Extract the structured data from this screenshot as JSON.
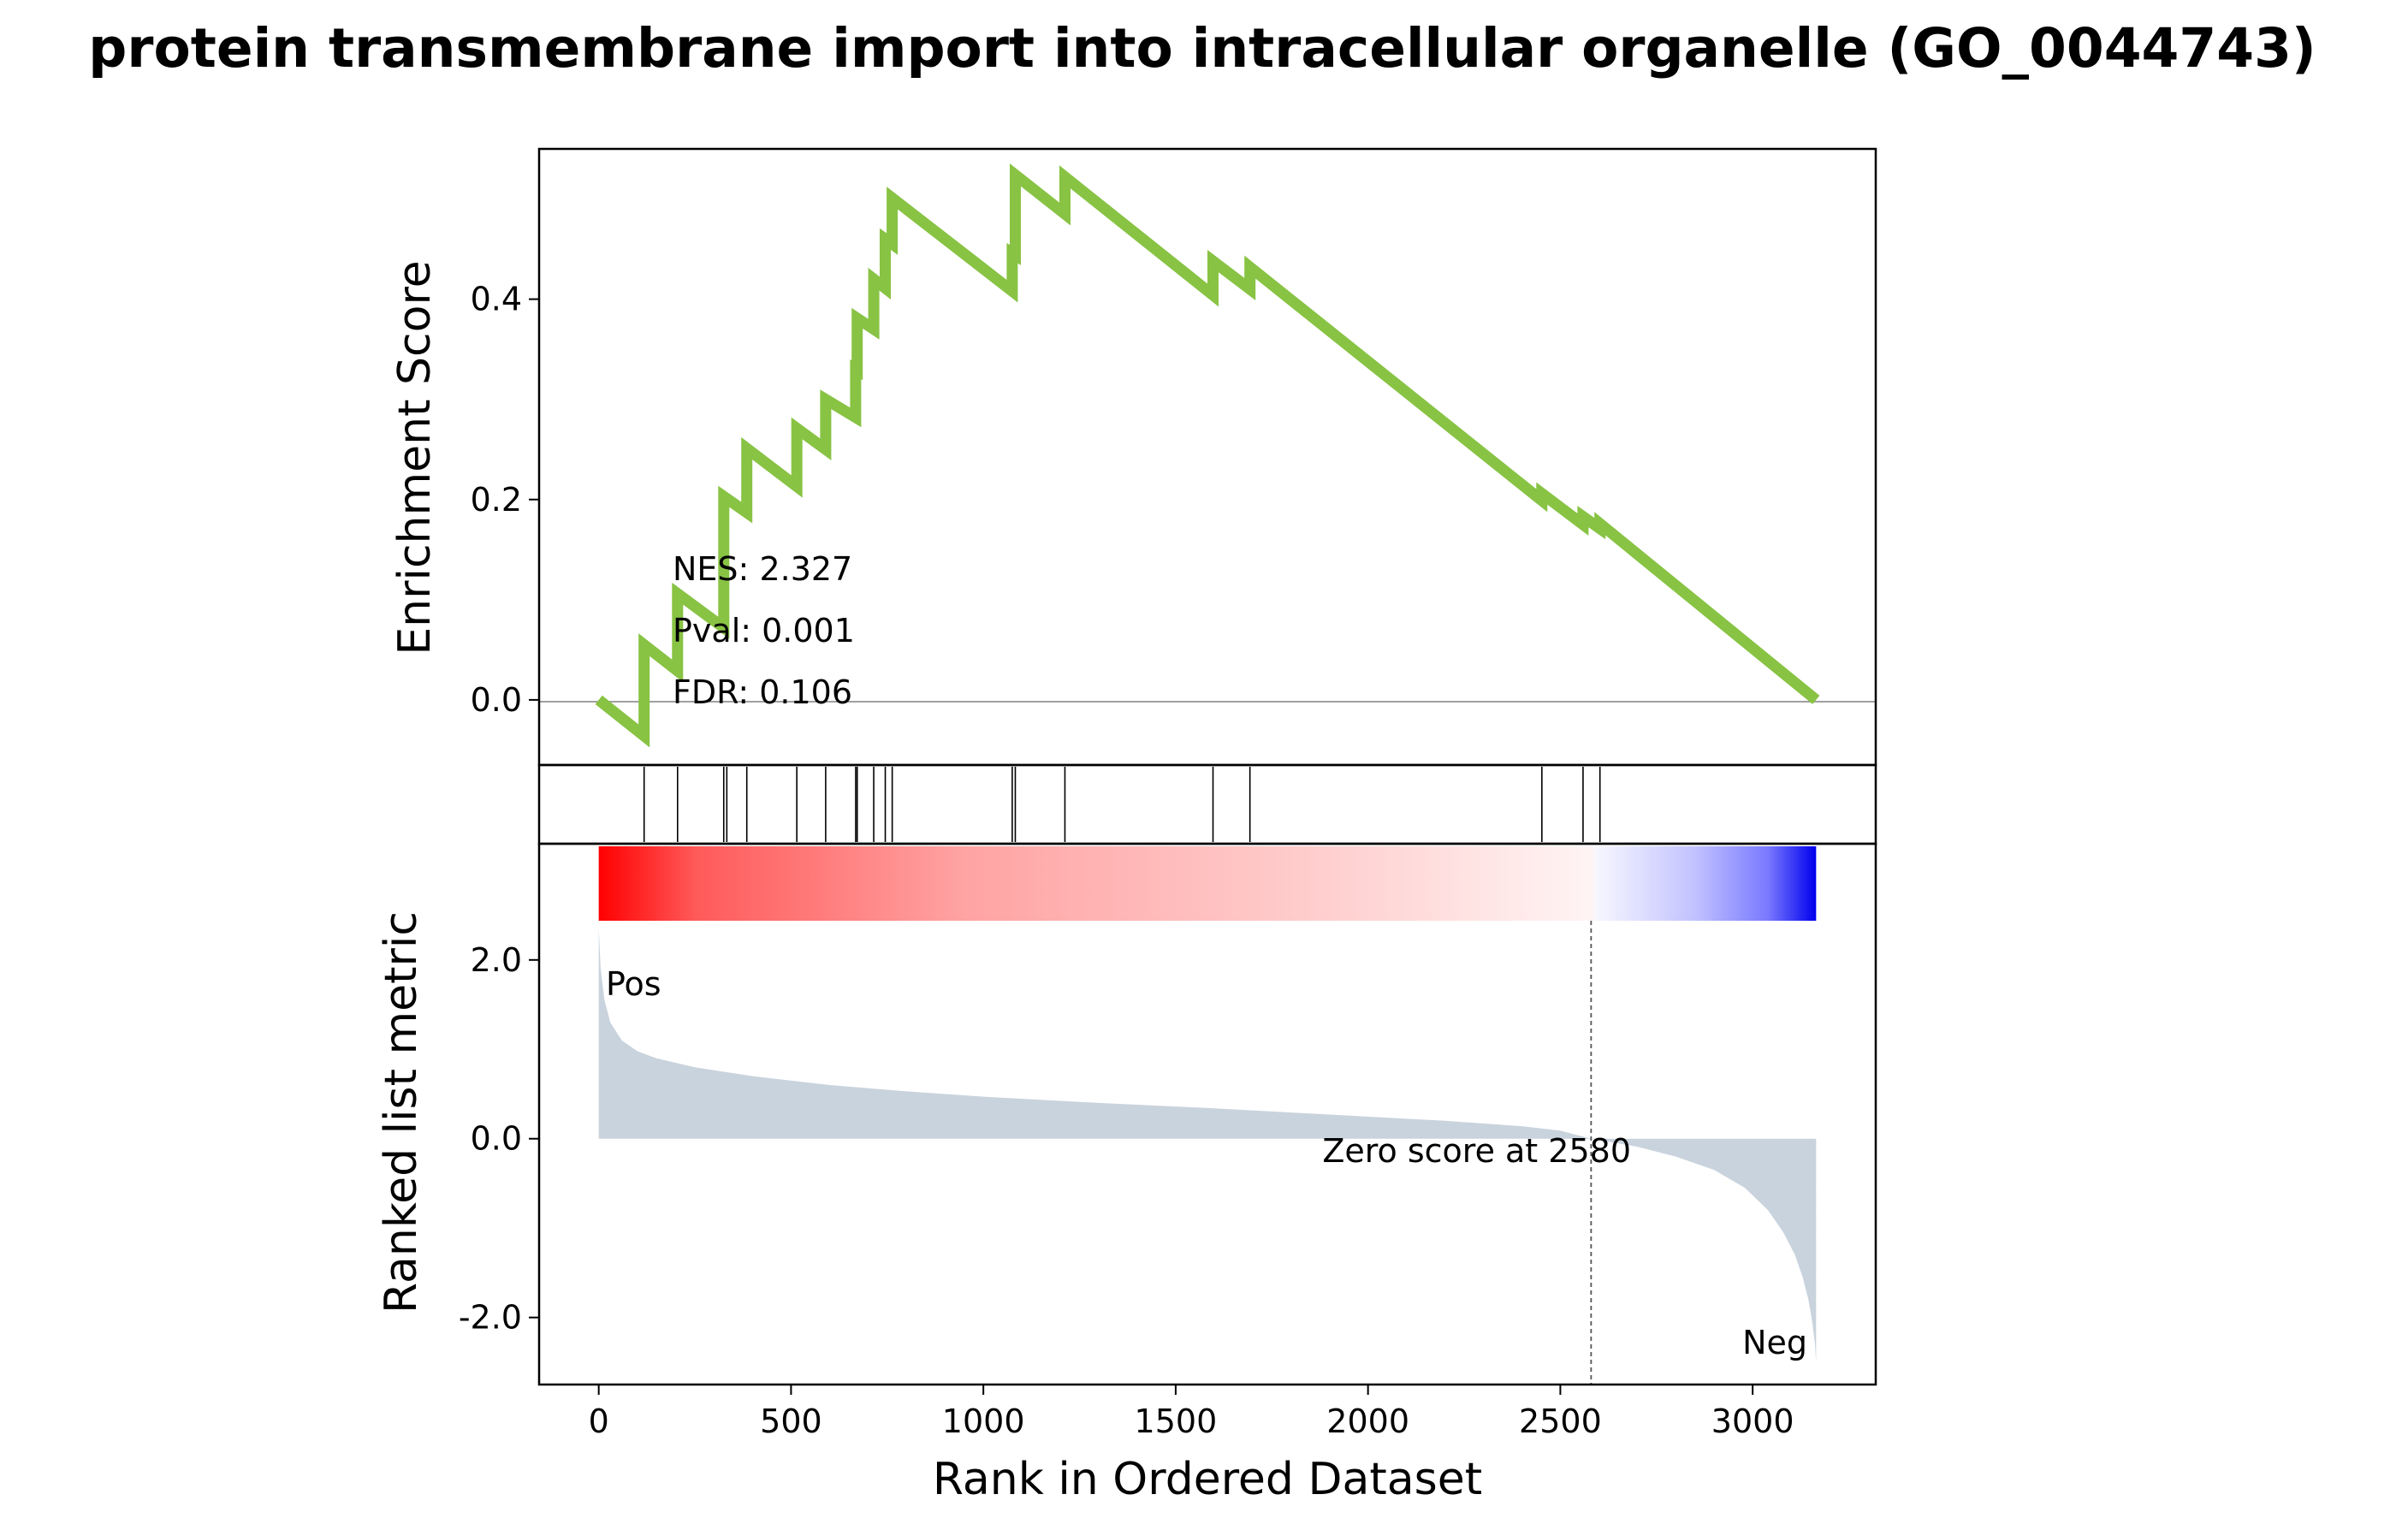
{
  "chart_data": {
    "type": "line",
    "title": "protein transmembrane import into intracellular organelle (GO_0044743)",
    "xlabel": "Rank in Ordered Dataset",
    "x_ticks": [
      "0",
      "500",
      "1000",
      "1500",
      "2000",
      "2500",
      "3000"
    ],
    "x_tick_values": [
      0,
      500,
      1000,
      1500,
      2000,
      2500,
      3000
    ],
    "xlim": [
      -155,
      3320
    ],
    "n_genes": 3165,
    "enrichment": {
      "ylabel": "Enrichment Score",
      "y_ticks": [
        "0.0",
        "0.2",
        "0.4"
      ],
      "y_tick_values": [
        0.0,
        0.2,
        0.4
      ],
      "ylim": [
        -0.065,
        0.55
      ],
      "line_color": "#88c344",
      "x": [
        0,
        118,
        118,
        205,
        205,
        325,
        325,
        385,
        385,
        515,
        515,
        590,
        590,
        668,
        668,
        672,
        672,
        715,
        715,
        745,
        745,
        763,
        763,
        1075,
        1075,
        1083,
        1083,
        1212,
        1212,
        1597,
        1597,
        1693,
        1693,
        2452,
        2452,
        2559,
        2559,
        2603,
        2603,
        3165
      ],
      "y": [
        0.0,
        -0.036,
        0.055,
        0.029,
        0.106,
        0.072,
        0.203,
        0.187,
        0.251,
        0.213,
        0.271,
        0.25,
        0.3,
        0.282,
        0.33,
        0.329,
        0.381,
        0.37,
        0.42,
        0.411,
        0.46,
        0.455,
        0.501,
        0.408,
        0.446,
        0.444,
        0.524,
        0.485,
        0.522,
        0.404,
        0.438,
        0.41,
        0.432,
        0.199,
        0.206,
        0.175,
        0.183,
        0.171,
        0.176,
        0.0
      ]
    },
    "hits": [
      118,
      205,
      325,
      333,
      385,
      515,
      590,
      668,
      672,
      715,
      745,
      763,
      1075,
      1083,
      1212,
      1597,
      1693,
      2452,
      2559,
      2603
    ],
    "stats": {
      "nes": "NES: 2.327",
      "pval": "Pval: 0.001",
      "fdr": "FDR: 0.106"
    },
    "ranked_metric": {
      "ylabel": "Ranked list metric",
      "y_ticks": [
        "2.0",
        "0.0",
        "-2.0"
      ],
      "y_tick_values": [
        2.0,
        0.0,
        -2.0
      ],
      "ylim": [
        -2.75,
        3.3
      ],
      "fill_color": "#c9d3dd",
      "x": [
        0,
        5,
        15,
        30,
        60,
        100,
        150,
        250,
        400,
        600,
        800,
        1000,
        1300,
        1600,
        1900,
        2200,
        2400,
        2500,
        2580,
        2700,
        2800,
        2900,
        2980,
        3040,
        3080,
        3110,
        3130,
        3145,
        3155,
        3162,
        3165
      ],
      "y": [
        2.35,
        1.9,
        1.55,
        1.3,
        1.1,
        0.98,
        0.9,
        0.8,
        0.7,
        0.6,
        0.53,
        0.47,
        0.4,
        0.34,
        0.27,
        0.2,
        0.14,
        0.09,
        0.0,
        -0.09,
        -0.2,
        -0.35,
        -0.55,
        -0.8,
        -1.05,
        -1.3,
        -1.55,
        -1.8,
        -2.05,
        -2.3,
        -2.5
      ],
      "zero_score_at": 2580,
      "zero_label": "Zero score at 2580",
      "pos_label": "Pos",
      "neg_label": "Neg",
      "pos_color": "#ff0000",
      "neg_color": "#0000ff"
    }
  }
}
